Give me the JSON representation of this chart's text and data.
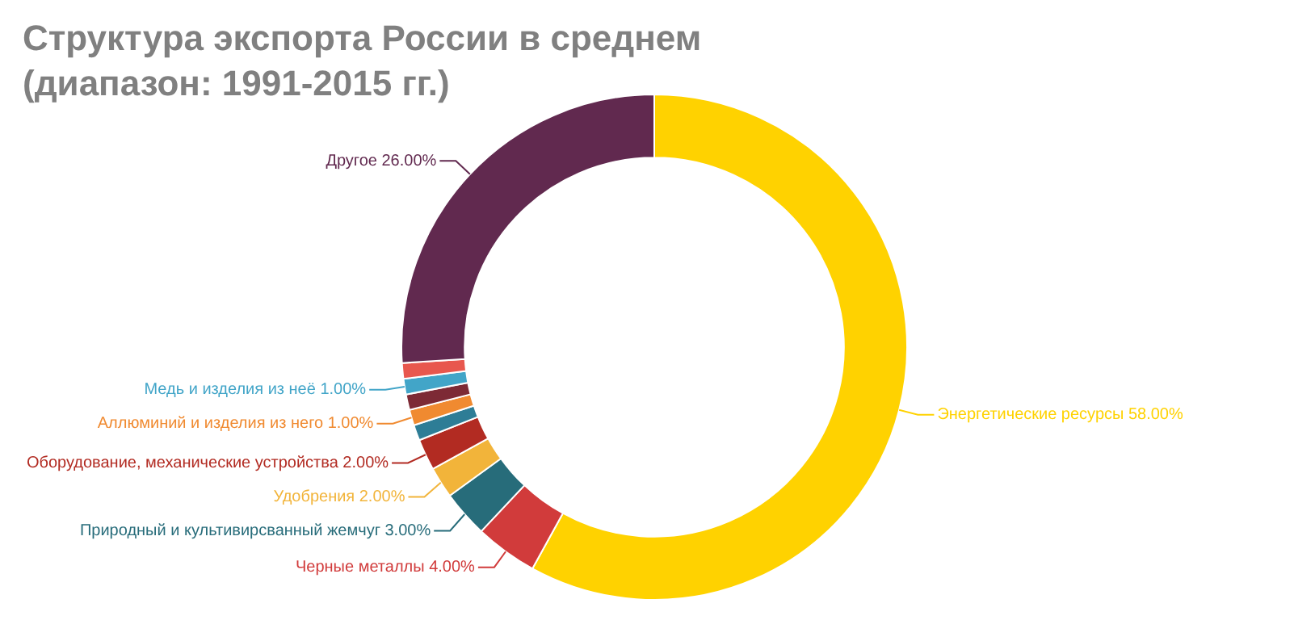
{
  "chart_data": {
    "type": "donut",
    "title": "Структура экспорта России в среднем (диапазон: 1991-2015 гг.)",
    "categories": [
      "Энергетические ресурсы",
      "Черные металлы",
      "Природный и культивирсванный жемчуг",
      "Удобрения",
      "Оборудование, механические устройства",
      null,
      "Аллюминий и изделия из него",
      null,
      "Медь и изделия из неё",
      null,
      "Другое"
    ],
    "values": [
      58,
      4,
      3,
      2,
      2,
      1,
      1,
      1,
      1,
      1,
      26
    ],
    "value_labels": [
      "58.00%",
      "4.00%",
      "3.00%",
      "2.00%",
      "2.00%",
      null,
      "1.00%",
      null,
      "1.00%",
      null,
      "26.00%"
    ],
    "colors": [
      "#ffd200",
      "#d13b3b",
      "#276c7a",
      "#f2b43a",
      "#b22b22",
      "#2e7d96",
      "#f08a30",
      "#7d2a35",
      "#42a5c8",
      "#e8574e",
      "#61294f"
    ],
    "legend": false
  }
}
